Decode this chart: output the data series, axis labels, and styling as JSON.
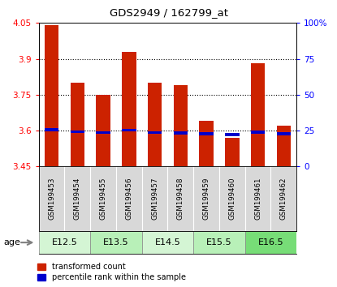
{
  "title": "GDS2949 / 162799_at",
  "samples": [
    "GSM199453",
    "GSM199454",
    "GSM199455",
    "GSM199456",
    "GSM199457",
    "GSM199458",
    "GSM199459",
    "GSM199460",
    "GSM199461",
    "GSM199462"
  ],
  "red_values": [
    4.04,
    3.8,
    3.75,
    3.93,
    3.8,
    3.79,
    3.64,
    3.57,
    3.88,
    3.62
  ],
  "blue_values": [
    3.605,
    3.595,
    3.592,
    3.602,
    3.592,
    3.591,
    3.586,
    3.582,
    3.593,
    3.587
  ],
  "y_min": 3.45,
  "y_max": 4.05,
  "y_ticks": [
    3.45,
    3.6,
    3.75,
    3.9,
    4.05
  ],
  "y2_ticks": [
    0,
    25,
    50,
    75,
    100
  ],
  "grid_lines": [
    3.6,
    3.75,
    3.9
  ],
  "age_groups": [
    {
      "label": "E12.5",
      "start": 0,
      "end": 2,
      "color": "#d4f5d4"
    },
    {
      "label": "E13.5",
      "start": 2,
      "end": 4,
      "color": "#b8f0b8"
    },
    {
      "label": "E14.5",
      "start": 4,
      "end": 6,
      "color": "#d4f5d4"
    },
    {
      "label": "E15.5",
      "start": 6,
      "end": 8,
      "color": "#b8f0b8"
    },
    {
      "label": "E16.5",
      "start": 8,
      "end": 10,
      "color": "#77dd77"
    }
  ],
  "bar_color": "#cc2200",
  "blue_color": "#0000cc",
  "bar_width": 0.55,
  "blue_bar_height": 0.013,
  "plot_bg": "#ffffff",
  "sample_bg": "#d8d8d8",
  "legend_red": "transformed count",
  "legend_blue": "percentile rank within the sample"
}
